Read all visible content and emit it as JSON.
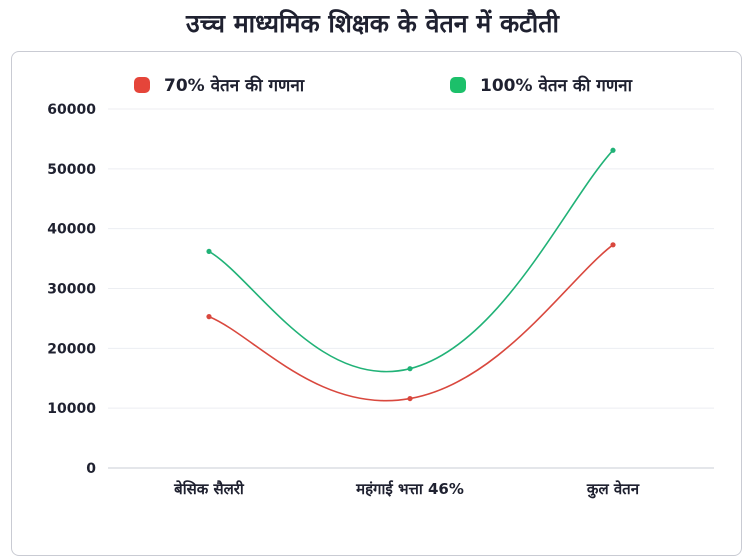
{
  "title": "उच्च माध्यमिक शिक्षक के वेतन में कटौती",
  "legend": [
    {
      "label": "70% वेतन की गणना",
      "color": "#e5453a"
    },
    {
      "label": "100% वेतन की गणना",
      "color": "#1cc06a"
    }
  ],
  "chart_data": {
    "type": "line",
    "categories": [
      "बेसिक सैलरी",
      "महंगाई भत्ता 46%",
      "कुल वेतन"
    ],
    "series": [
      {
        "name": "70% वेतन की गणना",
        "values": [
          25300,
          11600,
          37300
        ],
        "color": "#d9483e"
      },
      {
        "name": "100% वेतन की गणना",
        "values": [
          36200,
          16600,
          53100
        ],
        "color": "#21b277"
      }
    ],
    "yticks": [
      "0",
      "10000",
      "20000",
      "30000",
      "40000",
      "50000",
      "60000"
    ],
    "ylim": [
      0,
      60000
    ],
    "grid": true,
    "legend_position": "top"
  }
}
